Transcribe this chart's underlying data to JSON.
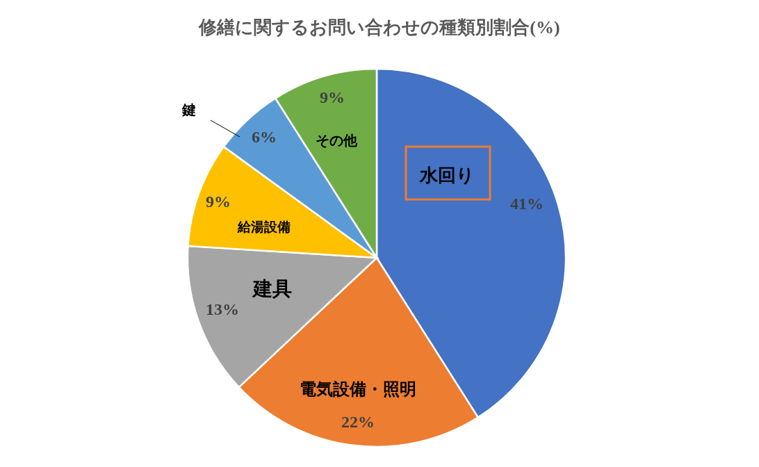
{
  "chart_data": {
    "type": "pie",
    "title": "修繕に関するお問い合わせの種類別割合(%)",
    "categories": [
      "水回り",
      "電気設備・照明",
      "建具",
      "給湯設備",
      "鍵",
      "その他"
    ],
    "values": [
      41,
      22,
      13,
      9,
      6,
      9
    ],
    "value_labels": [
      "41%",
      "22%",
      "13%",
      "9%",
      "6%",
      "9%"
    ],
    "colors": [
      "#4472c4",
      "#ed7d31",
      "#a5a5a5",
      "#ffc000",
      "#5b9bd5",
      "#70ad47"
    ]
  }
}
